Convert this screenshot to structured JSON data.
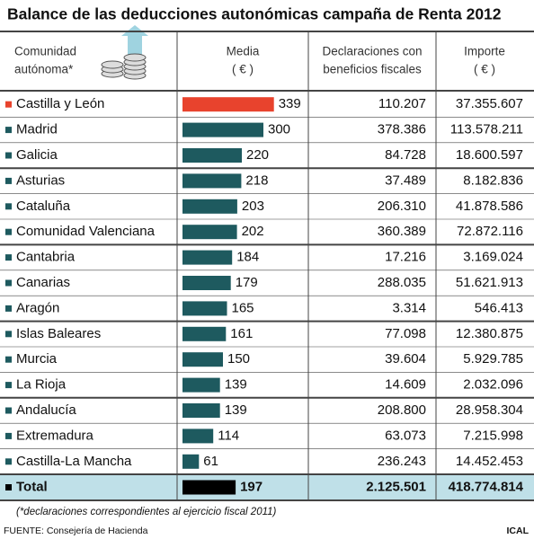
{
  "title": "Balance de las deducciones autonómicas campaña de Renta 2012",
  "header": {
    "region": [
      "Comunidad",
      "autónoma*"
    ],
    "media": [
      "Media",
      "( € )"
    ],
    "declarations": [
      "Declaraciones con",
      "beneficios fiscales"
    ],
    "amount": [
      "Importe",
      "( € )"
    ]
  },
  "rows": [
    {
      "name": "Castilla y León",
      "media": 339,
      "declarations": "110.207",
      "amount": "37.355.607"
    },
    {
      "name": "Madrid",
      "media": 300,
      "declarations": "378.386",
      "amount": "113.578.211"
    },
    {
      "name": "Galicia",
      "media": 220,
      "declarations": "84.728",
      "amount": "18.600.597"
    },
    {
      "name": "Asturias",
      "media": 218,
      "declarations": "37.489",
      "amount": "8.182.836"
    },
    {
      "name": "Cataluña",
      "media": 203,
      "declarations": "206.310",
      "amount": "41.878.586"
    },
    {
      "name": "Comunidad Valenciana",
      "media": 202,
      "declarations": "360.389",
      "amount": "72.872.116"
    },
    {
      "name": "Cantabria",
      "media": 184,
      "declarations": "17.216",
      "amount": "3.169.024"
    },
    {
      "name": "Canarias",
      "media": 179,
      "declarations": "288.035",
      "amount": "51.621.913"
    },
    {
      "name": "Aragón",
      "media": 165,
      "declarations": "3.314",
      "amount": "546.413"
    },
    {
      "name": "Islas Baleares",
      "media": 161,
      "declarations": "77.098",
      "amount": "12.380.875"
    },
    {
      "name": "Murcia",
      "media": 150,
      "declarations": "39.604",
      "amount": "5.929.785"
    },
    {
      "name": "La Rioja",
      "media": 139,
      "declarations": "14.609",
      "amount": "2.032.096"
    },
    {
      "name": "Andalucía",
      "media": 139,
      "declarations": "208.800",
      "amount": "28.958.304"
    },
    {
      "name": "Extremadura",
      "media": 114,
      "declarations": "63.073",
      "amount": "7.215.998"
    },
    {
      "name": "Castilla-La Mancha",
      "media": 61,
      "declarations": "236.243",
      "amount": "14.452.453"
    }
  ],
  "total": {
    "name": "Total",
    "media": 197,
    "declarations": "2.125.501",
    "amount": "418.774.814"
  },
  "footnote": "(*declaraciones correspondientes al ejercicio fiscal 2011)",
  "source": "FUENTE: Consejería de Hacienda",
  "credit": "ICAL"
}
